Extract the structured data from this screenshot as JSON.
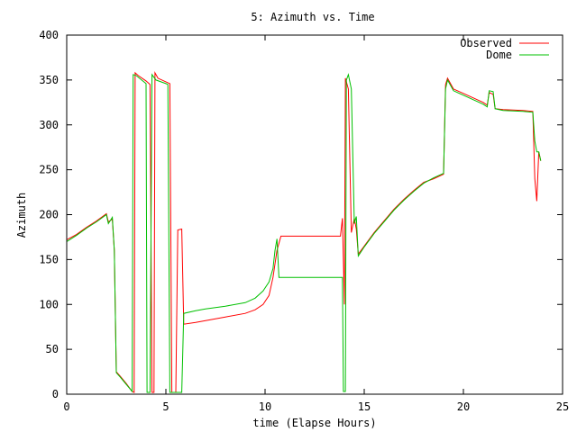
{
  "chart_data": {
    "type": "line",
    "title": "5: Azimuth vs. Time",
    "xlabel": "time (Elapse Hours)",
    "ylabel": "Azimuth",
    "xlim": [
      0,
      25
    ],
    "ylim": [
      0,
      400
    ],
    "xticks": [
      "0",
      "5",
      "10",
      "15",
      "20",
      "25"
    ],
    "yticks": [
      "0",
      "50",
      "100",
      "150",
      "200",
      "250",
      "300",
      "350",
      "400"
    ],
    "legend_position": "top-right",
    "grid": false,
    "series": [
      {
        "name": "Observed",
        "color": "#ff0000",
        "points": [
          [
            0,
            172
          ],
          [
            0.5,
            178
          ],
          [
            1.0,
            186
          ],
          [
            1.5,
            193
          ],
          [
            2.0,
            201
          ],
          [
            2.1,
            192
          ],
          [
            2.3,
            195
          ],
          [
            2.4,
            160
          ],
          [
            2.5,
            25
          ],
          [
            2.7,
            20
          ],
          [
            3.0,
            12
          ],
          [
            3.3,
            3
          ],
          [
            3.4,
            2
          ],
          [
            3.45,
            358
          ],
          [
            3.6,
            355
          ],
          [
            4.0,
            349
          ],
          [
            4.2,
            345
          ],
          [
            4.3,
            2
          ],
          [
            4.4,
            2
          ],
          [
            4.45,
            358
          ],
          [
            4.6,
            352
          ],
          [
            5.0,
            348
          ],
          [
            5.2,
            346
          ],
          [
            5.3,
            2
          ],
          [
            5.5,
            2
          ],
          [
            5.6,
            183
          ],
          [
            5.8,
            184
          ],
          [
            5.9,
            78
          ],
          [
            6.5,
            80
          ],
          [
            7.0,
            82
          ],
          [
            8.0,
            86
          ],
          [
            9.0,
            90
          ],
          [
            9.5,
            94
          ],
          [
            9.9,
            100
          ],
          [
            10.2,
            110
          ],
          [
            10.4,
            130
          ],
          [
            10.6,
            160
          ],
          [
            10.7,
            168
          ],
          [
            10.8,
            176
          ],
          [
            11.5,
            176
          ],
          [
            12.5,
            176
          ],
          [
            13.8,
            176
          ],
          [
            13.9,
            196
          ],
          [
            14.0,
            100
          ],
          [
            14.05,
            352
          ],
          [
            14.2,
            340
          ],
          [
            14.35,
            180
          ],
          [
            14.5,
            196
          ],
          [
            14.6,
            184
          ],
          [
            14.7,
            156
          ],
          [
            15.0,
            165
          ],
          [
            15.5,
            180
          ],
          [
            16.0,
            193
          ],
          [
            16.5,
            206
          ],
          [
            17.0,
            217
          ],
          [
            17.5,
            227
          ],
          [
            18.0,
            236
          ],
          [
            18.5,
            240
          ],
          [
            19.0,
            245
          ],
          [
            19.1,
            345
          ],
          [
            19.2,
            352
          ],
          [
            19.5,
            340
          ],
          [
            20.0,
            335
          ],
          [
            20.5,
            330
          ],
          [
            21.0,
            325
          ],
          [
            21.2,
            322
          ],
          [
            21.3,
            336
          ],
          [
            21.5,
            334
          ],
          [
            21.6,
            318
          ],
          [
            22.0,
            317
          ],
          [
            23.0,
            316
          ],
          [
            23.5,
            315
          ],
          [
            23.6,
            240
          ],
          [
            23.7,
            215
          ],
          [
            23.8,
            270
          ],
          [
            23.9,
            260
          ]
        ]
      },
      {
        "name": "Dome",
        "color": "#00c000",
        "points": [
          [
            0,
            170
          ],
          [
            0.5,
            177
          ],
          [
            1.0,
            185
          ],
          [
            1.5,
            192
          ],
          [
            2.0,
            200
          ],
          [
            2.1,
            190
          ],
          [
            2.3,
            197
          ],
          [
            2.4,
            160
          ],
          [
            2.5,
            24
          ],
          [
            2.7,
            19
          ],
          [
            3.0,
            11
          ],
          [
            3.3,
            3
          ],
          [
            3.35,
            356
          ],
          [
            3.5,
            355
          ],
          [
            4.0,
            346
          ],
          [
            4.05,
            2
          ],
          [
            4.2,
            2
          ],
          [
            4.3,
            356
          ],
          [
            4.5,
            350
          ],
          [
            5.0,
            346
          ],
          [
            5.1,
            345
          ],
          [
            5.2,
            2
          ],
          [
            5.3,
            2
          ],
          [
            5.8,
            2
          ],
          [
            5.9,
            90
          ],
          [
            6.5,
            93
          ],
          [
            7.0,
            95
          ],
          [
            8.0,
            98
          ],
          [
            9.0,
            102
          ],
          [
            9.5,
            107
          ],
          [
            9.9,
            115
          ],
          [
            10.2,
            125
          ],
          [
            10.4,
            140
          ],
          [
            10.5,
            160
          ],
          [
            10.6,
            173
          ],
          [
            10.7,
            130
          ],
          [
            11.0,
            130
          ],
          [
            12.5,
            130
          ],
          [
            13.9,
            130
          ],
          [
            13.95,
            3
          ],
          [
            14.05,
            3
          ],
          [
            14.1,
            350
          ],
          [
            14.2,
            356
          ],
          [
            14.35,
            340
          ],
          [
            14.5,
            190
          ],
          [
            14.6,
            198
          ],
          [
            14.7,
            154
          ],
          [
            15.0,
            164
          ],
          [
            15.5,
            179
          ],
          [
            16.0,
            192
          ],
          [
            16.5,
            205
          ],
          [
            17.0,
            216
          ],
          [
            17.5,
            226
          ],
          [
            18.0,
            235
          ],
          [
            18.5,
            241
          ],
          [
            19.0,
            246
          ],
          [
            19.1,
            340
          ],
          [
            19.2,
            350
          ],
          [
            19.5,
            338
          ],
          [
            20.0,
            333
          ],
          [
            20.5,
            328
          ],
          [
            21.0,
            323
          ],
          [
            21.2,
            320
          ],
          [
            21.3,
            338
          ],
          [
            21.5,
            337
          ],
          [
            21.6,
            318
          ],
          [
            22.0,
            316
          ],
          [
            23.0,
            315
          ],
          [
            23.5,
            314
          ],
          [
            23.6,
            282
          ],
          [
            23.7,
            270
          ],
          [
            23.8,
            270
          ],
          [
            23.9,
            260
          ]
        ]
      }
    ]
  }
}
